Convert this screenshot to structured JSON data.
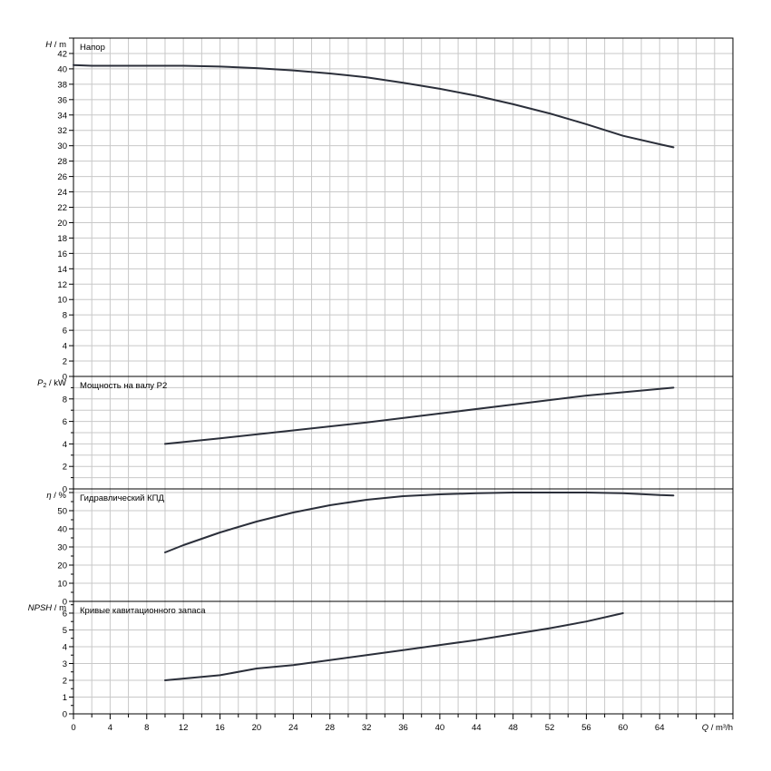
{
  "x_axis": {
    "label_italic": "Q",
    "label_unit": " / m³/h",
    "range": [
      0,
      72
    ],
    "major_step": 4,
    "minor_step": 2
  },
  "colors": {
    "curve": "#2b2f3a",
    "grid": "#c8c8c8",
    "frame": "#000000",
    "background": "#ffffff"
  },
  "chart_data": [
    {
      "type": "line",
      "title": "Напор",
      "ylabel_italic": "H",
      "ylabel_unit": " / m",
      "ylim": [
        0,
        44
      ],
      "tick_step": 2,
      "grid_step": 2,
      "label_max": 42,
      "x": [
        0,
        2,
        4,
        8,
        12,
        16,
        20,
        24,
        28,
        32,
        36,
        40,
        44,
        48,
        52,
        56,
        60,
        64,
        65.5
      ],
      "y": [
        40.5,
        40.4,
        40.4,
        40.4,
        40.4,
        40.3,
        40.1,
        39.8,
        39.4,
        38.9,
        38.2,
        37.4,
        36.5,
        35.4,
        34.2,
        32.8,
        31.3,
        30.2,
        29.8
      ]
    },
    {
      "type": "line",
      "title": "Мощность на валу P2",
      "ylabel_italic": "P",
      "ylabel_sub": "2",
      "ylabel_unit": " / kW",
      "ylim": [
        0,
        10
      ],
      "tick_step": 1,
      "grid_step": 1,
      "label_step": 2,
      "label_max": 8,
      "x": [
        10,
        16,
        24,
        32,
        40,
        48,
        56,
        65.5
      ],
      "y": [
        4.0,
        4.5,
        5.2,
        5.9,
        6.7,
        7.5,
        8.3,
        9.0
      ]
    },
    {
      "type": "line",
      "title": "Гидравлический КПД",
      "ylabel_italic": "η",
      "ylabel_unit": " / %",
      "ylim": [
        0,
        62
      ],
      "tick_step": 5,
      "grid_step": 10,
      "label_step": 10,
      "label_max": 50,
      "x": [
        10,
        12,
        16,
        20,
        24,
        28,
        32,
        36,
        40,
        44,
        48,
        52,
        56,
        60,
        64,
        65.5
      ],
      "y": [
        27,
        31,
        38,
        44,
        49,
        53,
        56,
        58,
        59,
        59.6,
        60,
        60,
        60,
        59.6,
        58.6,
        58.4
      ]
    },
    {
      "type": "line",
      "title": "Кривые кавитационного запаса",
      "ylabel_italic": "NPSH",
      "ylabel_unit": " / m",
      "ylim": [
        0,
        6.7
      ],
      "tick_step": 0.5,
      "grid_step": 1,
      "label_step": 1,
      "label_max": 6,
      "x": [
        10,
        16,
        20,
        24,
        28,
        32,
        36,
        40,
        44,
        48,
        52,
        56,
        60
      ],
      "y": [
        2.0,
        2.3,
        2.7,
        2.9,
        3.2,
        3.5,
        3.8,
        4.1,
        4.4,
        4.75,
        5.1,
        5.5,
        6.0
      ]
    }
  ]
}
